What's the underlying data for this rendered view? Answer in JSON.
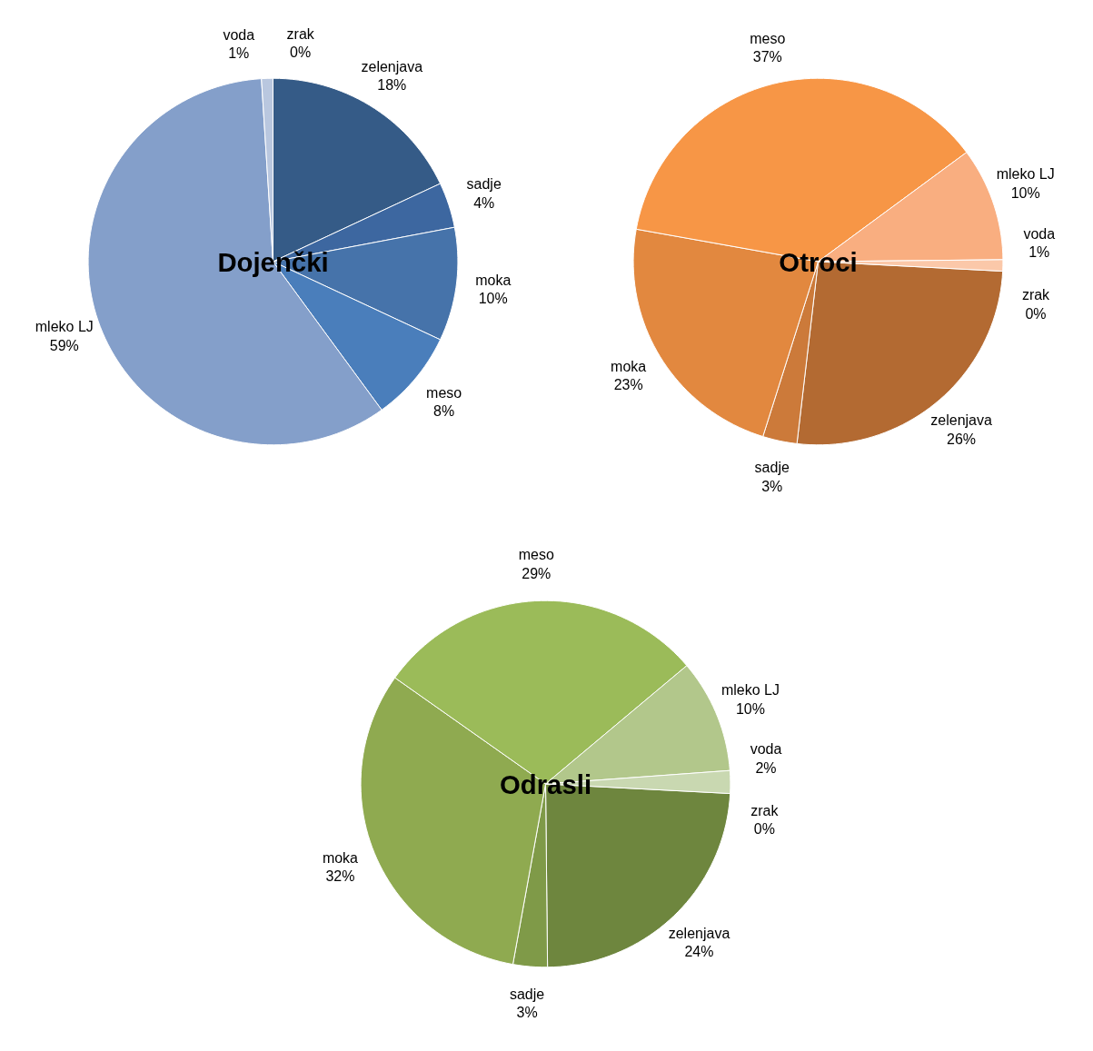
{
  "chart_data": [
    {
      "type": "pie",
      "title": "Dojenčki",
      "categories": [
        "zelenjava",
        "sadje",
        "moka",
        "meso",
        "mleko LJ",
        "voda",
        "zrak"
      ],
      "values": [
        18,
        4,
        10,
        8,
        59,
        1,
        0
      ],
      "value_labels": [
        "18%",
        "4%",
        "10%",
        "8%",
        "59%",
        "1%",
        "0%"
      ],
      "colors": [
        "#355b87",
        "#3d67a0",
        "#4673aa",
        "#4a7ebb",
        "#849fca",
        "#b9c7df",
        "#d5dfee"
      ]
    },
    {
      "type": "pie",
      "title": "Otroci",
      "categories": [
        "zelenjava",
        "sadje",
        "moka",
        "meso",
        "mleko LJ",
        "voda",
        "zrak"
      ],
      "values": [
        26,
        3,
        23,
        37,
        10,
        1,
        0
      ],
      "value_labels": [
        "26%",
        "3%",
        "23%",
        "37%",
        "10%",
        "1%",
        "0%"
      ],
      "colors": [
        "#b36a32",
        "#cc7a3a",
        "#e2883f",
        "#f79646",
        "#f9ae80",
        "#fbc8a9",
        "#fde0cf"
      ]
    },
    {
      "type": "pie",
      "title": "Odrasli",
      "categories": [
        "zelenjava",
        "sadje",
        "moka",
        "meso",
        "mleko LJ",
        "voda",
        "zrak"
      ],
      "values": [
        24,
        3,
        32,
        29,
        10,
        2,
        0
      ],
      "value_labels": [
        "24%",
        "3%",
        "32%",
        "29%",
        "10%",
        "2%",
        "0%"
      ],
      "colors": [
        "#6e863e",
        "#7f9a48",
        "#8faa50",
        "#9bbb59",
        "#b2c78b",
        "#c9d8b1",
        "#dde7cf"
      ]
    }
  ]
}
